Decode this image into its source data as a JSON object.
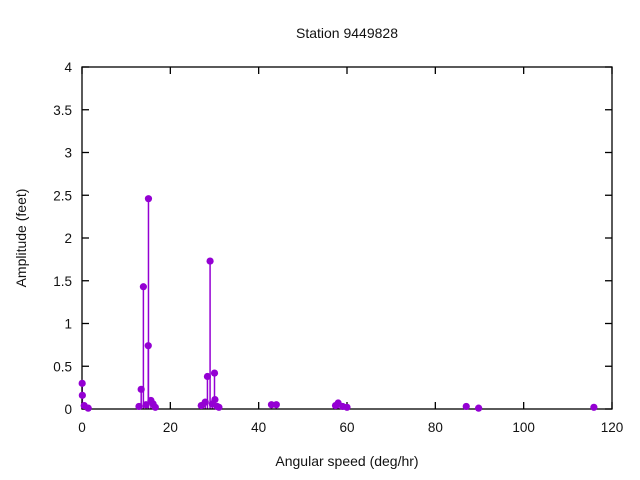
{
  "chart_data": {
    "type": "stem-impulse-scatter",
    "title": "Station 9449828",
    "xlabel": "Angular speed (deg/hr)",
    "ylabel": "Amplitude (feet)",
    "xlim": [
      0,
      120
    ],
    "ylim": [
      0,
      4
    ],
    "xticks": [
      0,
      20,
      40,
      60,
      80,
      100,
      120
    ],
    "xtick_labels": [
      "0",
      "20",
      "40",
      "60",
      "80",
      "100",
      "120"
    ],
    "yticks": [
      0,
      0.5,
      1,
      1.5,
      2,
      2.5,
      3,
      3.5,
      4
    ],
    "ytick_labels": [
      "0",
      "0.5",
      "1",
      "1.5",
      "2",
      "2.5",
      "3",
      "3.5",
      "4"
    ],
    "grid": false,
    "legend": "none",
    "series_color": "#9400d3",
    "border_color": "#000000",
    "points": [
      {
        "x": 0.04,
        "y": 0.3
      },
      {
        "x": 0.08,
        "y": 0.16
      },
      {
        "x": 0.5,
        "y": 0.04
      },
      {
        "x": 1.4,
        "y": 0.01
      },
      {
        "x": 12.9,
        "y": 0.03
      },
      {
        "x": 13.4,
        "y": 0.23
      },
      {
        "x": 13.9,
        "y": 1.43
      },
      {
        "x": 14.5,
        "y": 0.05
      },
      {
        "x": 15.0,
        "y": 0.74
      },
      {
        "x": 15.05,
        "y": 2.46
      },
      {
        "x": 15.6,
        "y": 0.1
      },
      {
        "x": 16.1,
        "y": 0.06
      },
      {
        "x": 16.6,
        "y": 0.02
      },
      {
        "x": 27.0,
        "y": 0.04
      },
      {
        "x": 27.9,
        "y": 0.08
      },
      {
        "x": 28.4,
        "y": 0.38
      },
      {
        "x": 29.0,
        "y": 1.73
      },
      {
        "x": 29.5,
        "y": 0.06
      },
      {
        "x": 30.0,
        "y": 0.42
      },
      {
        "x": 30.1,
        "y": 0.11
      },
      {
        "x": 30.6,
        "y": 0.03
      },
      {
        "x": 31.0,
        "y": 0.02
      },
      {
        "x": 42.9,
        "y": 0.05
      },
      {
        "x": 44.0,
        "y": 0.05
      },
      {
        "x": 57.4,
        "y": 0.04
      },
      {
        "x": 58.0,
        "y": 0.07
      },
      {
        "x": 59.0,
        "y": 0.03
      },
      {
        "x": 60.0,
        "y": 0.02
      },
      {
        "x": 87.0,
        "y": 0.03
      },
      {
        "x": 89.8,
        "y": 0.01
      },
      {
        "x": 115.9,
        "y": 0.02
      }
    ]
  }
}
